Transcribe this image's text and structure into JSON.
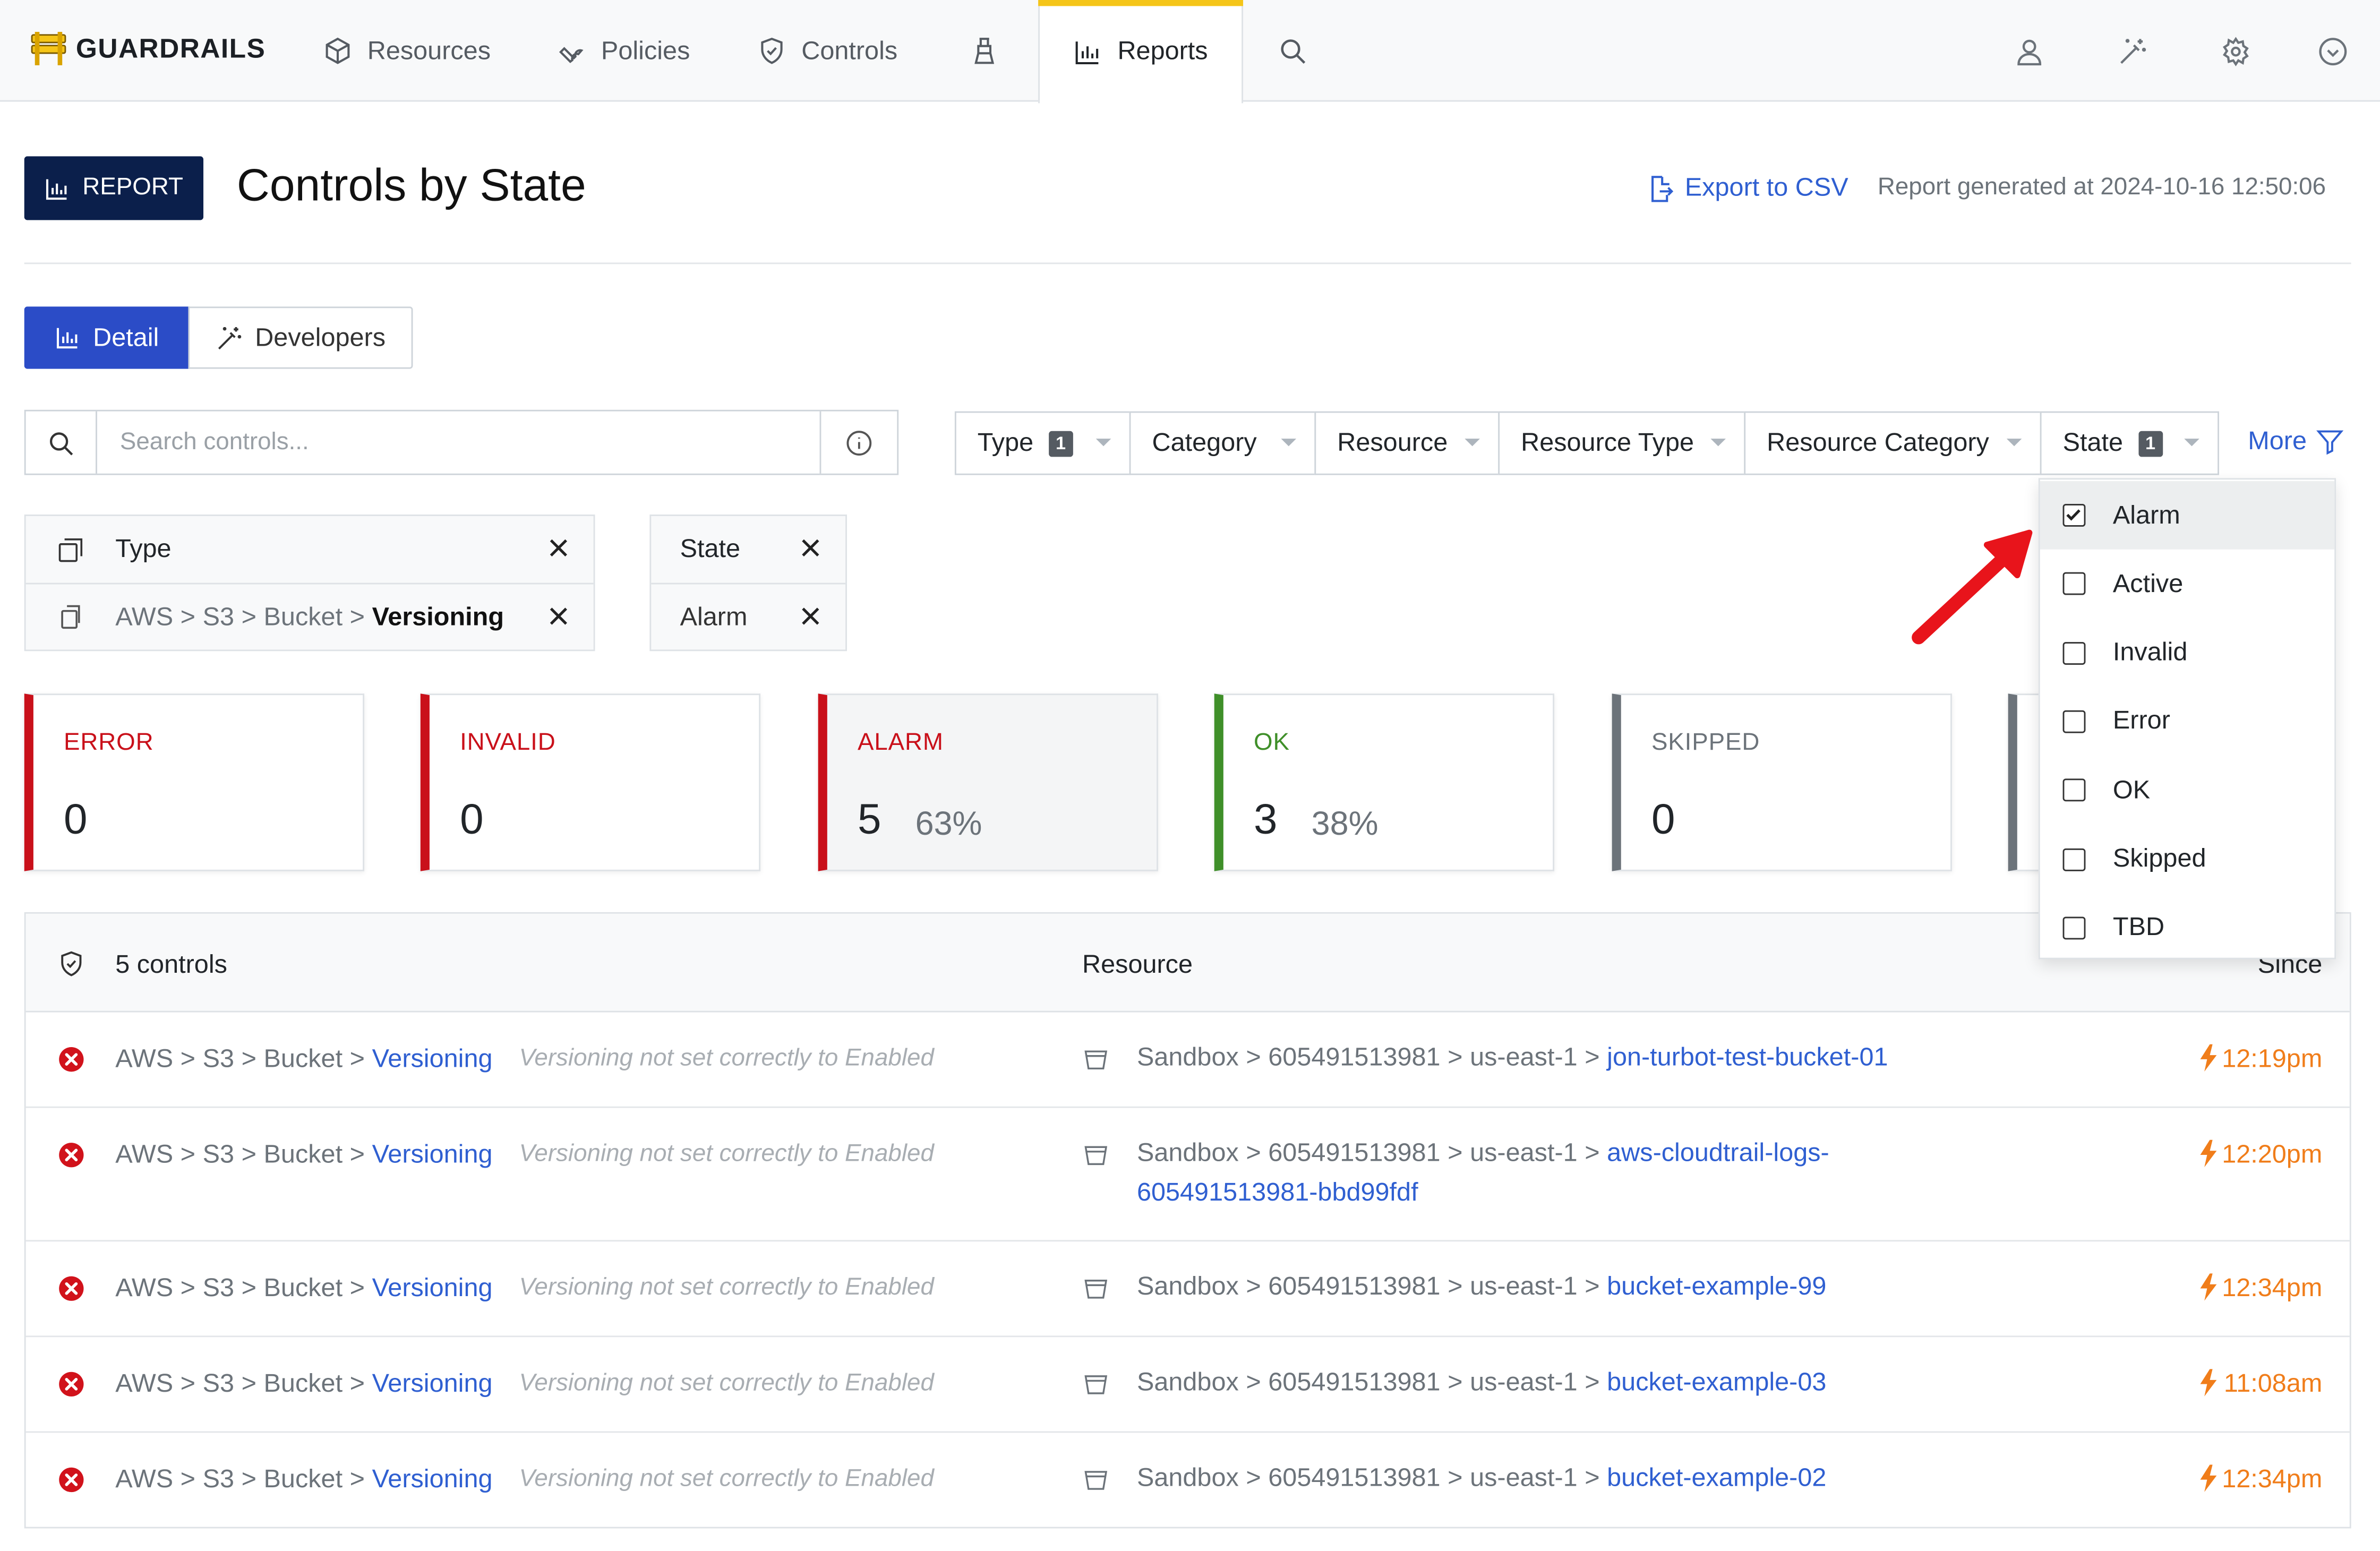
{
  "nav": {
    "brand": "GUARDRAILS",
    "items": [
      {
        "label": "Resources",
        "icon": "cube-icon"
      },
      {
        "label": "Policies",
        "icon": "wrench-icon"
      },
      {
        "label": "Controls",
        "icon": "shield-check-icon"
      },
      {
        "label": "",
        "icon": "flask-icon"
      },
      {
        "label": "Reports",
        "icon": "bar-chart-icon",
        "active": true
      },
      {
        "label": "",
        "icon": "search-icon"
      }
    ],
    "right_icons": [
      "user-icon",
      "magic-wand-icon",
      "gear-icon",
      "chevron-circle-icon"
    ]
  },
  "header": {
    "badge": "REPORT",
    "title": "Controls by State",
    "export_label": "Export to CSV",
    "generated": "Report generated at 2024-10-16 12:50:06"
  },
  "views": {
    "detail": "Detail",
    "developers": "Developers"
  },
  "search": {
    "placeholder": "Search controls..."
  },
  "filters": {
    "type": "Type",
    "type_count": "1",
    "category": "Category",
    "resource": "Resource",
    "resource_type": "Resource Type",
    "resource_category": "Resource Category",
    "state": "State",
    "state_count": "1",
    "more": "More"
  },
  "chips": {
    "type_header": "Type",
    "type_value": {
      "p1": "AWS",
      "p2": "S3",
      "p3": "Bucket",
      "leaf": "Versioning"
    },
    "state_header": "State",
    "state_value": "Alarm",
    "separator": ">"
  },
  "cards": [
    {
      "label": "ERROR",
      "value": "0",
      "pct": "",
      "color": "#c9101a"
    },
    {
      "label": "INVALID",
      "value": "0",
      "pct": "",
      "color": "#c9101a"
    },
    {
      "label": "ALARM",
      "value": "5",
      "pct": "63%",
      "color": "#c9101a"
    },
    {
      "label": "OK",
      "value": "3",
      "pct": "38%",
      "color": "#3f8f29"
    },
    {
      "label": "SKIPPED",
      "value": "0",
      "pct": "",
      "color": "#6c737a"
    }
  ],
  "table": {
    "count_label": "5 controls",
    "resource_header": "Resource",
    "since_header": "Since",
    "rows": [
      {
        "c1": "AWS",
        "c2": "S3",
        "c3": "Bucket",
        "control": "Versioning",
        "reason": "Versioning not set correctly to Enabled",
        "r1": "Sandbox",
        "r2": "605491513981",
        "r3": "us-east-1",
        "res1": "jon-turbot-test-bucket-01",
        "res2": "",
        "since": "12:19pm"
      },
      {
        "c1": "AWS",
        "c2": "S3",
        "c3": "Bucket",
        "control": "Versioning",
        "reason": "Versioning not set correctly to Enabled",
        "r1": "Sandbox",
        "r2": "605491513981",
        "r3": "us-east-1",
        "res1": "aws-cloudtrail-logs-",
        "res2": "605491513981-bbd99fdf",
        "since": "12:20pm"
      },
      {
        "c1": "AWS",
        "c2": "S3",
        "c3": "Bucket",
        "control": "Versioning",
        "reason": "Versioning not set correctly to Enabled",
        "r1": "Sandbox",
        "r2": "605491513981",
        "r3": "us-east-1",
        "res1": "bucket-example-99",
        "res2": "",
        "since": "12:34pm"
      },
      {
        "c1": "AWS",
        "c2": "S3",
        "c3": "Bucket",
        "control": "Versioning",
        "reason": "Versioning not set correctly to Enabled",
        "r1": "Sandbox",
        "r2": "605491513981",
        "r3": "us-east-1",
        "res1": "bucket-example-03",
        "res2": "",
        "since": "11:08am"
      },
      {
        "c1": "AWS",
        "c2": "S3",
        "c3": "Bucket",
        "control": "Versioning",
        "reason": "Versioning not set correctly to Enabled",
        "r1": "Sandbox",
        "r2": "605491513981",
        "r3": "us-east-1",
        "res1": "bucket-example-02",
        "res2": "",
        "since": "12:34pm"
      }
    ]
  },
  "state_dropdown": {
    "options": [
      {
        "label": "Alarm",
        "checked": true
      },
      {
        "label": "Active",
        "checked": false
      },
      {
        "label": "Invalid",
        "checked": false
      },
      {
        "label": "Error",
        "checked": false
      },
      {
        "label": "OK",
        "checked": false
      },
      {
        "label": "Skipped",
        "checked": false
      },
      {
        "label": "TBD",
        "checked": false
      }
    ]
  },
  "colors": {
    "brand_yellow": "#f5c518",
    "navy": "#0b1f4b",
    "primary_blue": "#2b4cc7",
    "link": "#2f5fd1",
    "alarm_red": "#c9101a",
    "ok_green": "#3f8f29",
    "since_orange": "#f07d1a",
    "annotation_arrow": "#e8141b"
  }
}
